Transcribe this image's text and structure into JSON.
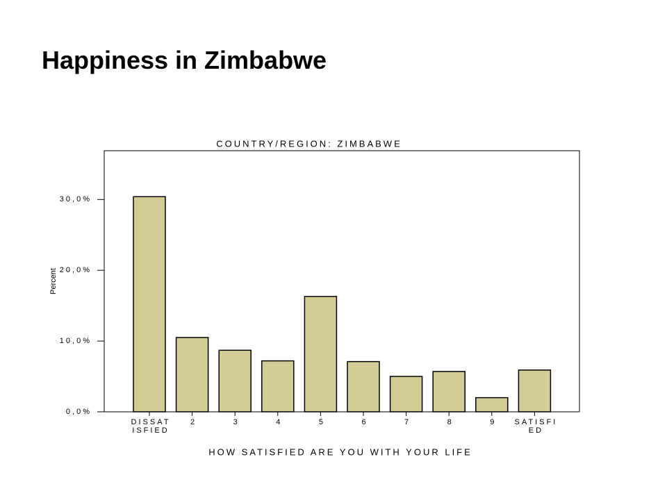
{
  "slide_title": "Happiness in Zimbabwe",
  "chart_data": {
    "type": "bar",
    "title": "COUNTRY/REGION: ZIMBABWE",
    "x_label": "HOW SATISFIED ARE YOU WITH YOUR LIFE",
    "y_label": "Percent",
    "categories": [
      "DISSATISFIED",
      "2",
      "3",
      "4",
      "5",
      "6",
      "7",
      "8",
      "9",
      "SATISFIED"
    ],
    "values": [
      30.4,
      10.5,
      8.7,
      7.2,
      16.3,
      7.1,
      5.0,
      5.7,
      2.0,
      5.9
    ],
    "color": "#d3cc96",
    "ylim": [
      0,
      36.9
    ],
    "yticks": [
      {
        "value": 0,
        "label": "0,0%"
      },
      {
        "value": 10,
        "label": "10,0%"
      },
      {
        "value": 20,
        "label": "20,0%"
      },
      {
        "value": 30,
        "label": "30,0%"
      }
    ]
  }
}
